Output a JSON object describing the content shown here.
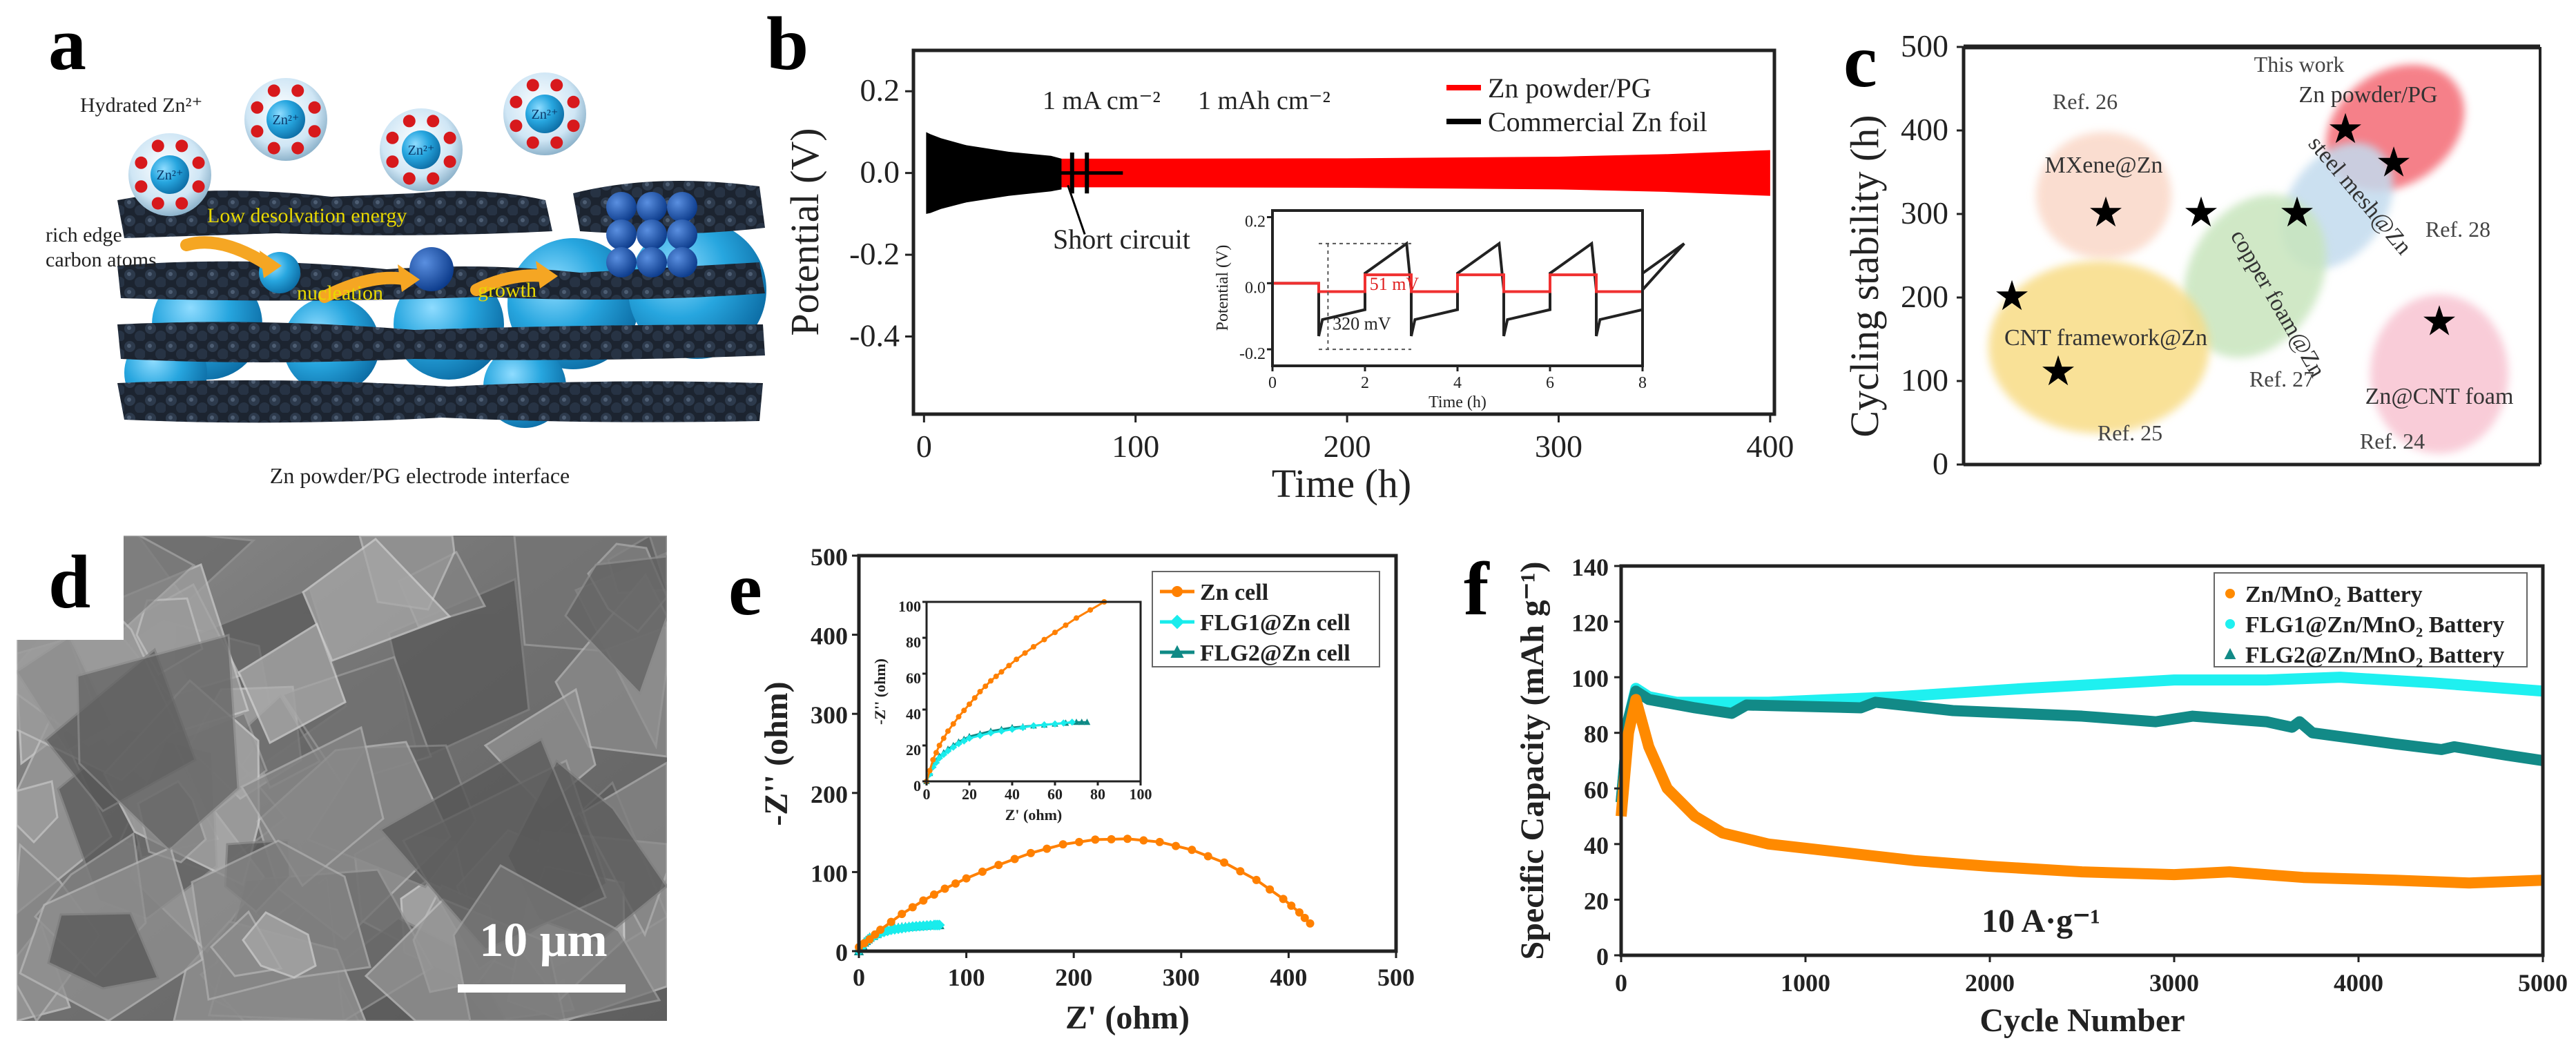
{
  "figure": {
    "panel_labels": [
      "a",
      "b",
      "c",
      "d",
      "e",
      "f"
    ]
  },
  "panel_a": {
    "hydrated_label": "Hydrated Zn²⁺",
    "ion_label": "Zn²⁺",
    "edge_label_1": "rich edge",
    "edge_label_2": "carbon atoms",
    "desolvation": "Low desolvation energy",
    "nucleation": "nucleation",
    "growth": "growth",
    "caption": "Zn powder/PG electrode interface"
  },
  "panel_d": {
    "scale_bar": "10 μm"
  },
  "chart_data": [
    {
      "panel": "b",
      "type": "line",
      "xlabel": "Time (h)",
      "ylabel": "Potential (V)",
      "xlim": [
        -5,
        402
      ],
      "ylim": [
        -0.59,
        0.3
      ],
      "xticks": [
        0,
        100,
        200,
        300,
        400
      ],
      "yticks": [
        0.2,
        0.0,
        -0.2,
        -0.4
      ],
      "ytick_labels": [
        "0.2",
        "0.0",
        "-0.2",
        "-0.4"
      ],
      "annotations": {
        "current": "1 mA cm⁻²",
        "capacity": "1 mAh cm⁻²",
        "short": "Short circuit"
      },
      "legend_position": "top-right",
      "series": [
        {
          "name": "Zn powder/PG",
          "color": "#ff0000",
          "t": [
            65,
            100,
            200,
            300,
            350,
            400
          ],
          "upper": [
            0.035,
            0.035,
            0.036,
            0.04,
            0.046,
            0.056
          ],
          "lower": [
            -0.035,
            -0.035,
            -0.036,
            -0.04,
            -0.046,
            -0.056
          ]
        },
        {
          "name": "Commercial Zn foil",
          "color": "#000000",
          "t": [
            1,
            3,
            8,
            20,
            40,
            60,
            65
          ],
          "upper": [
            0.1,
            0.095,
            0.085,
            0.068,
            0.052,
            0.042,
            0.035
          ],
          "lower": [
            -0.1,
            -0.098,
            -0.088,
            -0.072,
            -0.056,
            -0.045,
            -0.04
          ],
          "short_circuit_t": [
            70,
            77
          ]
        }
      ],
      "inset": {
        "xlabel": "Time (h)",
        "ylabel": "Potential (V)",
        "xlim": [
          0,
          8
        ],
        "ylim": [
          -0.25,
          0.22
        ],
        "xticks": [
          0,
          2,
          4,
          6,
          8
        ],
        "yticks": [
          0.2,
          0.0,
          -0.2
        ],
        "ytick_labels": [
          "0.2",
          "0.0",
          "-0.2"
        ],
        "annotations": {
          "red": "51 mV",
          "black": "320 mV"
        },
        "red_amplitude": 0.0255,
        "black_peak": 0.12,
        "black_trough": -0.2
      }
    },
    {
      "panel": "c",
      "type": "scatter",
      "ylabel": "Cycling stability (h)",
      "ylim": [
        0,
        500
      ],
      "yticks": [
        0,
        100,
        200,
        300,
        400,
        500
      ],
      "groups": [
        {
          "ref": "This work",
          "label": "Zn powder/PG",
          "values": [
            400,
            360
          ],
          "color": "#f46a74"
        },
        {
          "ref": "Ref. 26",
          "label": "MXene@Zn",
          "values": [
            300
          ],
          "color": "#fad8c8"
        },
        {
          "ref": "Ref. 28",
          "label": "steel mesh@Zn",
          "values": [
            300
          ],
          "color": "#c3dbee"
        },
        {
          "ref": "Ref. 27",
          "label": "copper foam@Zn",
          "values": [
            300
          ],
          "color": "#c8e5bd"
        },
        {
          "ref": "Ref. 25",
          "label": "CNT framework@Zn",
          "values": [
            200,
            110
          ],
          "color": "#f8dc86"
        },
        {
          "ref": "Ref. 24",
          "label": "Zn@CNT foam",
          "values": [
            170
          ],
          "color": "#f8c4d2"
        }
      ]
    },
    {
      "panel": "e",
      "type": "scatter",
      "xlabel": "Z' (ohm)",
      "ylabel": "-Z'' (ohm)",
      "xlim": [
        0,
        500
      ],
      "ylim": [
        0,
        500
      ],
      "xticks": [
        0,
        100,
        200,
        300,
        400,
        500
      ],
      "yticks": [
        0,
        100,
        200,
        300,
        400,
        500
      ],
      "legend_position": "top-right",
      "series": [
        {
          "name": "Zn cell",
          "color": "#ff8000",
          "marker": "circle",
          "x": [
            0,
            10,
            20,
            40,
            60,
            80,
            100,
            130,
            160,
            190,
            220,
            250,
            280,
            310,
            340,
            370,
            395,
            410,
            420
          ],
          "y": [
            5,
            15,
            27,
            47,
            64,
            79,
            92,
            109,
            124,
            135,
            141,
            142,
            138,
            128,
            112,
            90,
            66,
            49,
            35
          ]
        },
        {
          "name": "FLG1@Zn cell",
          "color": "#19ecec",
          "marker": "diamond",
          "x": [
            0,
            5,
            10,
            20,
            30,
            40,
            50,
            60,
            70,
            75
          ],
          "y": [
            0,
            10,
            16,
            23,
            27,
            29,
            31,
            32,
            33,
            33
          ]
        },
        {
          "name": "FLG2@Zn cell",
          "color": "#0f8a86",
          "marker": "triangle",
          "x": [
            0,
            5,
            10,
            20,
            30,
            40,
            50,
            60,
            70,
            75
          ],
          "y": [
            0,
            11,
            17,
            24,
            28,
            30,
            31,
            32,
            33,
            33
          ]
        }
      ],
      "inset": {
        "xlabel": "Z' (ohm)",
        "ylabel": "-Z'' (ohm)",
        "xlim": [
          0,
          100
        ],
        "ylim": [
          0,
          100
        ],
        "xticks": [
          0,
          20,
          40,
          60,
          80,
          100
        ],
        "yticks": [
          0,
          20,
          40,
          60,
          80,
          100
        ],
        "series": [
          {
            "name": "Zn cell",
            "x": [
              0,
              3,
              6,
              10,
              15,
              20,
              25,
              30,
              35,
              42,
              50,
              60,
              70,
              83
            ],
            "y": [
              0,
              12,
              20,
              28,
              36,
              43,
              50,
              56,
              61,
              68,
              75,
              83,
              91,
              100
            ]
          },
          {
            "name": "FLG1@Zn cell",
            "x": [
              0,
              3,
              6,
              10,
              15,
              20,
              30,
              40,
              50,
              60,
              68
            ],
            "y": [
              0,
              8,
              13,
              17,
              21,
              24,
              27,
              29,
              31,
              32,
              33
            ]
          },
          {
            "name": "FLG2@Zn cell",
            "x": [
              0,
              3,
              6,
              10,
              15,
              20,
              30,
              40,
              50,
              60,
              70,
              75
            ],
            "y": [
              0,
              9,
              14,
              18,
              22,
              25,
              28,
              30,
              31,
              32,
              33,
              33
            ]
          }
        ]
      }
    },
    {
      "panel": "f",
      "type": "line",
      "xlabel": "Cycle Number",
      "ylabel": "Specific Capacity (mAh g⁻¹)",
      "xlim": [
        0,
        5000
      ],
      "ylim": [
        0,
        140
      ],
      "xticks": [
        0,
        1000,
        2000,
        3000,
        4000,
        5000
      ],
      "yticks": [
        0,
        20,
        40,
        60,
        80,
        100,
        120,
        140
      ],
      "annotation": "10 A·g⁻¹",
      "legend_position": "top-right",
      "series": [
        {
          "name": "Zn/MnO₂ Battery",
          "color": "#ff8a00",
          "x": [
            0,
            40,
            80,
            150,
            250,
            400,
            550,
            800,
            1200,
            1600,
            2000,
            2500,
            3000,
            3300,
            3700,
            4200,
            4600,
            5000
          ],
          "y": [
            50,
            80,
            92,
            75,
            60,
            50,
            44,
            40,
            37,
            34,
            32,
            30,
            29,
            30,
            28,
            27,
            26,
            27
          ]
        },
        {
          "name": "FLG1@Zn/MnO₂ Battery",
          "color": "#1ff0f0",
          "x": [
            0,
            40,
            80,
            150,
            300,
            800,
            1500,
            2200,
            3000,
            3500,
            3900,
            4400,
            5000
          ],
          "y": [
            55,
            85,
            96,
            93,
            91,
            91,
            93,
            96,
            99,
            99,
            100,
            98,
            95
          ]
        },
        {
          "name": "FLG2@Zn/MnO₂ Battery",
          "color": "#128a87",
          "x": [
            0,
            40,
            80,
            150,
            400,
            600,
            680,
            1300,
            1380,
            1800,
            2500,
            2900,
            3100,
            3500,
            3640,
            3680,
            3750,
            4200,
            4450,
            4520,
            4800,
            5000
          ],
          "y": [
            55,
            85,
            95,
            92,
            89,
            87,
            90,
            89,
            91,
            88,
            86,
            84,
            86,
            84,
            82,
            84,
            80,
            76,
            74,
            75,
            72,
            70
          ]
        }
      ]
    }
  ]
}
